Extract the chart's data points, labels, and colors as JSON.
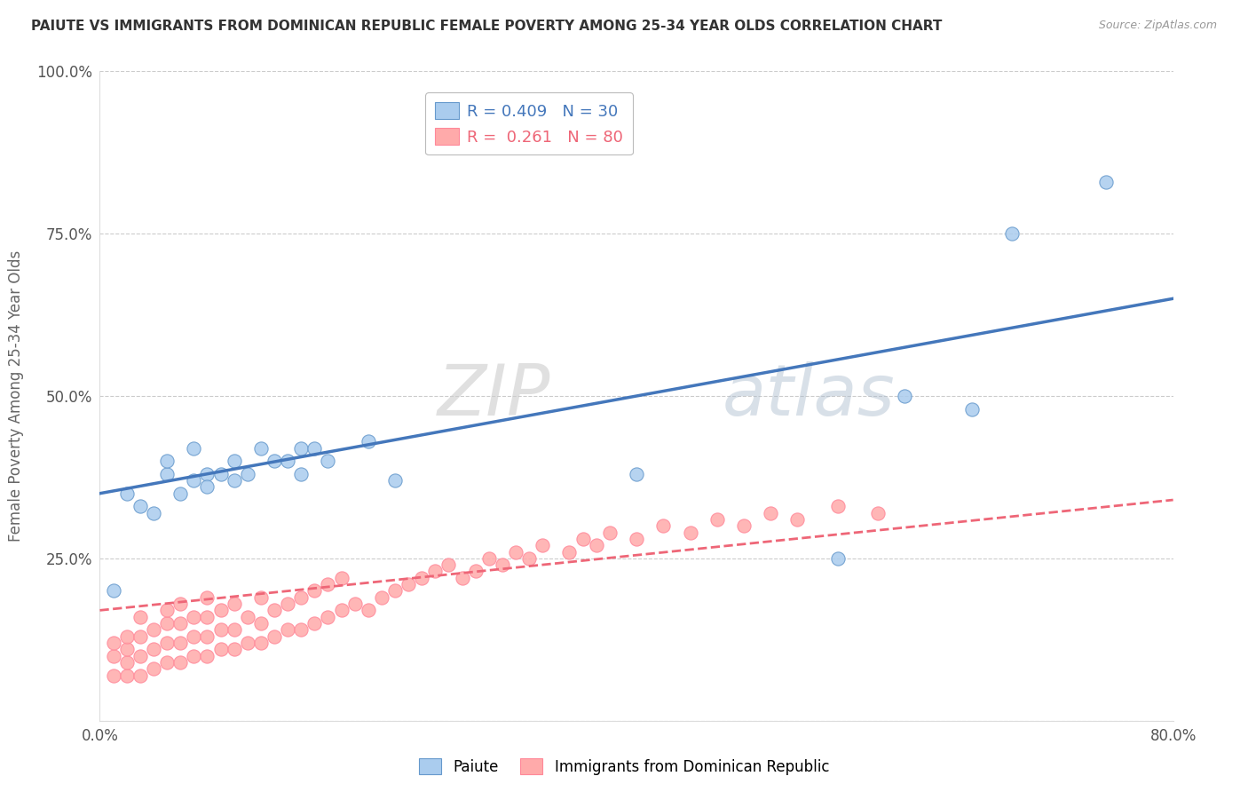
{
  "title": "PAIUTE VS IMMIGRANTS FROM DOMINICAN REPUBLIC FEMALE POVERTY AMONG 25-34 YEAR OLDS CORRELATION CHART",
  "source": "Source: ZipAtlas.com",
  "xlabel": "",
  "ylabel": "Female Poverty Among 25-34 Year Olds",
  "xlim": [
    0.0,
    0.8
  ],
  "ylim": [
    0.0,
    1.0
  ],
  "xticks": [
    0.0,
    0.2,
    0.4,
    0.6,
    0.8
  ],
  "xticklabels": [
    "0.0%",
    "",
    "",
    "",
    "80.0%"
  ],
  "yticks": [
    0.0,
    0.25,
    0.5,
    0.75,
    1.0
  ],
  "yticklabels": [
    "",
    "25.0%",
    "50.0%",
    "75.0%",
    "100.0%"
  ],
  "blue_R": 0.409,
  "blue_N": 30,
  "pink_R": 0.261,
  "pink_N": 80,
  "blue_label": "Paiute",
  "pink_label": "Immigrants from Dominican Republic",
  "watermark": "ZIPAtlas",
  "blue_color": "#AACCEE",
  "pink_color": "#FFAAAA",
  "blue_edge_color": "#6699CC",
  "pink_edge_color": "#FF8899",
  "blue_line_color": "#4477BB",
  "pink_line_color": "#EE6677",
  "background_color": "#FFFFFF",
  "blue_scatter_x": [
    0.01,
    0.02,
    0.03,
    0.04,
    0.05,
    0.05,
    0.06,
    0.07,
    0.07,
    0.08,
    0.08,
    0.09,
    0.1,
    0.1,
    0.11,
    0.12,
    0.13,
    0.14,
    0.15,
    0.15,
    0.16,
    0.17,
    0.2,
    0.22,
    0.4,
    0.55,
    0.6,
    0.65,
    0.68,
    0.75
  ],
  "blue_scatter_y": [
    0.2,
    0.35,
    0.33,
    0.32,
    0.38,
    0.4,
    0.35,
    0.37,
    0.42,
    0.38,
    0.36,
    0.38,
    0.37,
    0.4,
    0.38,
    0.42,
    0.4,
    0.4,
    0.38,
    0.42,
    0.42,
    0.4,
    0.43,
    0.37,
    0.38,
    0.25,
    0.5,
    0.48,
    0.75,
    0.83
  ],
  "pink_scatter_x": [
    0.01,
    0.01,
    0.01,
    0.02,
    0.02,
    0.02,
    0.02,
    0.03,
    0.03,
    0.03,
    0.03,
    0.04,
    0.04,
    0.04,
    0.05,
    0.05,
    0.05,
    0.05,
    0.06,
    0.06,
    0.06,
    0.06,
    0.07,
    0.07,
    0.07,
    0.08,
    0.08,
    0.08,
    0.08,
    0.09,
    0.09,
    0.09,
    0.1,
    0.1,
    0.1,
    0.11,
    0.11,
    0.12,
    0.12,
    0.12,
    0.13,
    0.13,
    0.14,
    0.14,
    0.15,
    0.15,
    0.16,
    0.16,
    0.17,
    0.17,
    0.18,
    0.18,
    0.19,
    0.2,
    0.21,
    0.22,
    0.23,
    0.24,
    0.25,
    0.26,
    0.27,
    0.28,
    0.29,
    0.3,
    0.31,
    0.32,
    0.33,
    0.35,
    0.36,
    0.37,
    0.38,
    0.4,
    0.42,
    0.44,
    0.46,
    0.48,
    0.5,
    0.52,
    0.55,
    0.58
  ],
  "pink_scatter_y": [
    0.07,
    0.1,
    0.12,
    0.07,
    0.09,
    0.11,
    0.13,
    0.07,
    0.1,
    0.13,
    0.16,
    0.08,
    0.11,
    0.14,
    0.09,
    0.12,
    0.15,
    0.17,
    0.09,
    0.12,
    0.15,
    0.18,
    0.1,
    0.13,
    0.16,
    0.1,
    0.13,
    0.16,
    0.19,
    0.11,
    0.14,
    0.17,
    0.11,
    0.14,
    0.18,
    0.12,
    0.16,
    0.12,
    0.15,
    0.19,
    0.13,
    0.17,
    0.14,
    0.18,
    0.14,
    0.19,
    0.15,
    0.2,
    0.16,
    0.21,
    0.17,
    0.22,
    0.18,
    0.17,
    0.19,
    0.2,
    0.21,
    0.22,
    0.23,
    0.24,
    0.22,
    0.23,
    0.25,
    0.24,
    0.26,
    0.25,
    0.27,
    0.26,
    0.28,
    0.27,
    0.29,
    0.28,
    0.3,
    0.29,
    0.31,
    0.3,
    0.32,
    0.31,
    0.33,
    0.32
  ],
  "blue_trend_x0": 0.0,
  "blue_trend_y0": 0.35,
  "blue_trend_x1": 0.8,
  "blue_trend_y1": 0.65,
  "pink_trend_x0": 0.0,
  "pink_trend_y0": 0.17,
  "pink_trend_x1": 0.8,
  "pink_trend_y1": 0.34
}
